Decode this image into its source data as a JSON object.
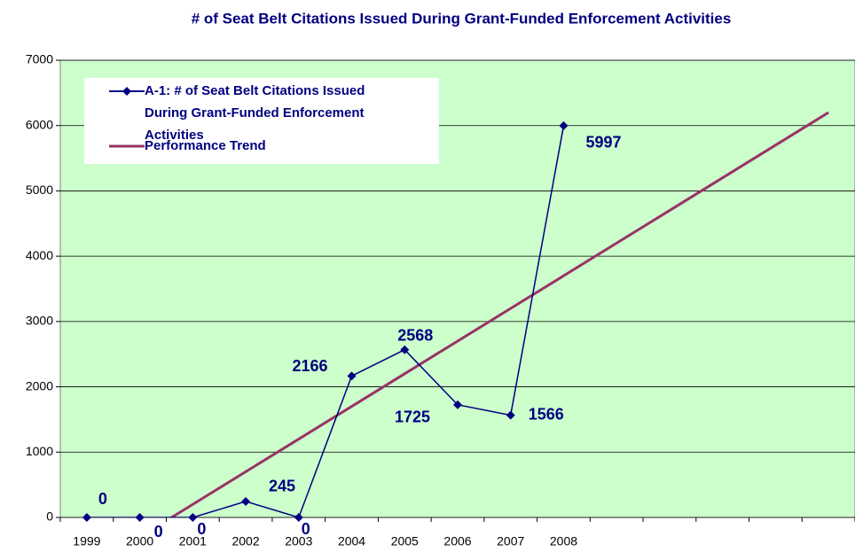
{
  "chart_data": {
    "type": "line",
    "title": "# of Seat Belt Citations Issued During Grant-Funded Enforcement Activities",
    "categories": [
      "1999",
      "2000",
      "2001",
      "2002",
      "2003",
      "2004",
      "2005",
      "2006",
      "2007",
      "2008",
      null,
      null,
      null,
      null,
      null
    ],
    "series": [
      {
        "name": "A-1: # of Seat Belt Citations Issued During Grant-Funded Enforcement Activities",
        "color": "#000080",
        "marker": "diamond",
        "values": [
          0,
          0,
          0,
          245,
          0,
          2166,
          2568,
          1725,
          1566,
          5997,
          null,
          null,
          null,
          null,
          null
        ],
        "data_labels": true
      },
      {
        "name": "Performance Trend",
        "color": "#993366",
        "values": [
          -800,
          -300,
          200,
          700,
          1200,
          1700,
          2200,
          2700,
          3200,
          3700,
          4200,
          4700,
          5200,
          5700,
          6200
        ]
      }
    ],
    "ylim": [
      0,
      7000
    ],
    "yticks": [
      0,
      1000,
      2000,
      3000,
      4000,
      5000,
      6000,
      7000
    ],
    "grid": true,
    "plot_background": "#ccffcc"
  }
}
